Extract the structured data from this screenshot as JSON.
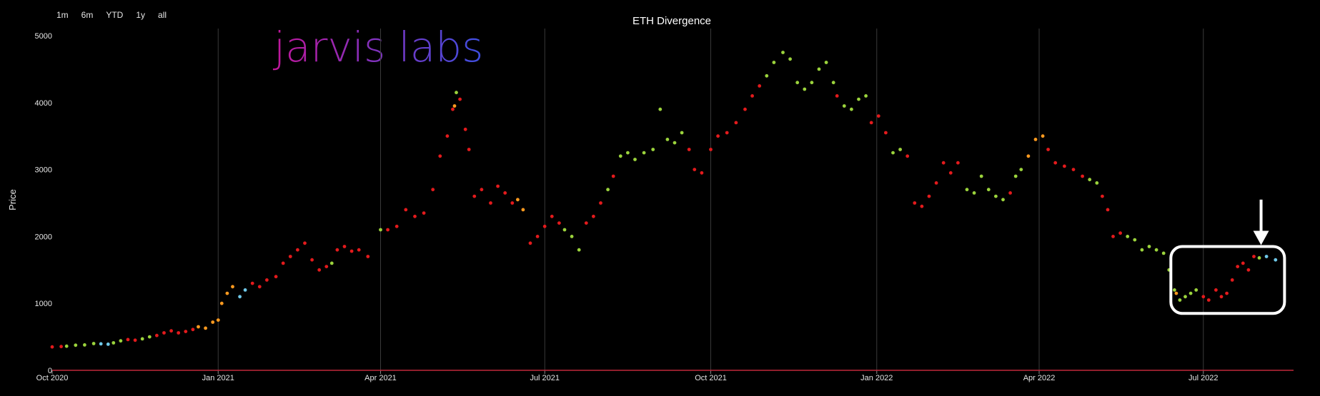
{
  "range_selector": {
    "buttons": [
      "1m",
      "6m",
      "YTD",
      "1y",
      "all"
    ]
  },
  "brand": {
    "logo_text": "jarvis labs"
  },
  "colors": {
    "background": "#000000",
    "baseline": "#c0283a",
    "gridline": "#3a3a3a",
    "red": "#e31a1c",
    "orange": "#ff9a1f",
    "green": "#9bd33c",
    "blue": "#6fc8e8",
    "annotation": "#ffffff",
    "logo_start": "#c0169a",
    "logo_end": "#3d4fe0"
  },
  "chart_data": {
    "type": "scatter",
    "title": "ETH Divergence",
    "xlabel": "",
    "ylabel": "Price",
    "ylim": [
      0,
      5000
    ],
    "yticks": [
      "0",
      "1000",
      "2000",
      "3000",
      "4000",
      "5000"
    ],
    "xlim": [
      "2020-10-01",
      "2022-08-20"
    ],
    "xticks": [
      {
        "date": "2020-10-01",
        "label": "Oct 2020"
      },
      {
        "date": "2021-01-01",
        "label": "Jan 2021"
      },
      {
        "date": "2021-04-01",
        "label": "Apr 2021"
      },
      {
        "date": "2021-07-01",
        "label": "Jul 2021"
      },
      {
        "date": "2021-10-01",
        "label": "Oct 2021"
      },
      {
        "date": "2022-01-01",
        "label": "Jan 2022"
      },
      {
        "date": "2022-04-01",
        "label": "Apr 2022"
      },
      {
        "date": "2022-07-01",
        "label": "Jul 2022"
      }
    ],
    "vertical_grid": true,
    "horizontal_grid": false,
    "legend": "none",
    "segments": [
      {
        "color": "red",
        "points": [
          [
            "2020-10-01",
            350
          ],
          [
            "2020-10-06",
            355
          ]
        ]
      },
      {
        "color": "green",
        "points": [
          [
            "2020-10-09",
            360
          ],
          [
            "2020-10-14",
            375
          ],
          [
            "2020-10-19",
            380
          ],
          [
            "2020-10-24",
            400
          ]
        ]
      },
      {
        "color": "blue",
        "points": [
          [
            "2020-10-28",
            395
          ],
          [
            "2020-11-01",
            390
          ]
        ]
      },
      {
        "color": "green",
        "points": [
          [
            "2020-11-04",
            410
          ],
          [
            "2020-11-08",
            440
          ]
        ]
      },
      {
        "color": "red",
        "points": [
          [
            "2020-11-12",
            460
          ],
          [
            "2020-11-16",
            450
          ]
        ]
      },
      {
        "color": "green",
        "points": [
          [
            "2020-11-20",
            470
          ],
          [
            "2020-11-24",
            500
          ]
        ]
      },
      {
        "color": "red",
        "points": [
          [
            "2020-11-28",
            520
          ],
          [
            "2020-12-02",
            560
          ],
          [
            "2020-12-06",
            590
          ],
          [
            "2020-12-10",
            560
          ],
          [
            "2020-12-14",
            580
          ],
          [
            "2020-12-18",
            610
          ]
        ]
      },
      {
        "color": "orange",
        "points": [
          [
            "2020-12-21",
            650
          ],
          [
            "2020-12-25",
            630
          ],
          [
            "2020-12-29",
            720
          ],
          [
            "2021-01-01",
            750
          ]
        ]
      },
      {
        "color": "orange",
        "points": [
          [
            "2021-01-03",
            1000
          ],
          [
            "2021-01-06",
            1150
          ],
          [
            "2021-01-09",
            1250
          ]
        ]
      },
      {
        "color": "blue",
        "points": [
          [
            "2021-01-13",
            1100
          ],
          [
            "2021-01-16",
            1200
          ]
        ]
      },
      {
        "color": "red",
        "points": [
          [
            "2021-01-20",
            1300
          ],
          [
            "2021-01-24",
            1250
          ],
          [
            "2021-01-28",
            1350
          ],
          [
            "2021-02-02",
            1400
          ],
          [
            "2021-02-06",
            1600
          ],
          [
            "2021-02-10",
            1700
          ],
          [
            "2021-02-14",
            1800
          ],
          [
            "2021-02-18",
            1900
          ],
          [
            "2021-02-22",
            1650
          ],
          [
            "2021-02-26",
            1500
          ],
          [
            "2021-03-02",
            1550
          ]
        ]
      },
      {
        "color": "green",
        "points": [
          [
            "2021-03-05",
            1600
          ]
        ]
      },
      {
        "color": "red",
        "points": [
          [
            "2021-03-08",
            1800
          ],
          [
            "2021-03-12",
            1850
          ],
          [
            "2021-03-16",
            1780
          ],
          [
            "2021-03-20",
            1800
          ],
          [
            "2021-03-25",
            1700
          ]
        ]
      },
      {
        "color": "green",
        "points": [
          [
            "2021-04-01",
            2100
          ]
        ]
      },
      {
        "color": "red",
        "points": [
          [
            "2021-04-05",
            2100
          ],
          [
            "2021-04-10",
            2150
          ],
          [
            "2021-04-15",
            2400
          ],
          [
            "2021-04-20",
            2300
          ],
          [
            "2021-04-25",
            2350
          ],
          [
            "2021-04-30",
            2700
          ],
          [
            "2021-05-04",
            3200
          ],
          [
            "2021-05-08",
            3500
          ],
          [
            "2021-05-11",
            3900
          ]
        ]
      },
      {
        "color": "orange",
        "points": [
          [
            "2021-05-12",
            3950
          ]
        ]
      },
      {
        "color": "green",
        "points": [
          [
            "2021-05-13",
            4150
          ]
        ]
      },
      {
        "color": "red",
        "points": [
          [
            "2021-05-15",
            4050
          ],
          [
            "2021-05-18",
            3600
          ],
          [
            "2021-05-20",
            3300
          ],
          [
            "2021-05-23",
            2600
          ],
          [
            "2021-05-27",
            2700
          ],
          [
            "2021-06-01",
            2500
          ],
          [
            "2021-06-05",
            2750
          ],
          [
            "2021-06-09",
            2650
          ],
          [
            "2021-06-13",
            2500
          ]
        ]
      },
      {
        "color": "orange",
        "points": [
          [
            "2021-06-16",
            2550
          ],
          [
            "2021-06-19",
            2400
          ]
        ]
      },
      {
        "color": "red",
        "points": [
          [
            "2021-06-23",
            1900
          ],
          [
            "2021-06-27",
            2000
          ],
          [
            "2021-07-01",
            2150
          ],
          [
            "2021-07-05",
            2300
          ],
          [
            "2021-07-09",
            2200
          ]
        ]
      },
      {
        "color": "green",
        "points": [
          [
            "2021-07-12",
            2100
          ],
          [
            "2021-07-16",
            2000
          ],
          [
            "2021-07-20",
            1800
          ]
        ]
      },
      {
        "color": "red",
        "points": [
          [
            "2021-07-24",
            2200
          ],
          [
            "2021-07-28",
            2300
          ],
          [
            "2021-08-01",
            2500
          ]
        ]
      },
      {
        "color": "green",
        "points": [
          [
            "2021-08-05",
            2700
          ]
        ]
      },
      {
        "color": "red",
        "points": [
          [
            "2021-08-08",
            2900
          ]
        ]
      },
      {
        "color": "green",
        "points": [
          [
            "2021-08-12",
            3200
          ],
          [
            "2021-08-16",
            3250
          ],
          [
            "2021-08-20",
            3150
          ],
          [
            "2021-08-25",
            3250
          ],
          [
            "2021-08-30",
            3300
          ],
          [
            "2021-09-03",
            3900
          ],
          [
            "2021-09-07",
            3450
          ],
          [
            "2021-09-11",
            3400
          ],
          [
            "2021-09-15",
            3550
          ]
        ]
      },
      {
        "color": "red",
        "points": [
          [
            "2021-09-19",
            3300
          ],
          [
            "2021-09-22",
            3000
          ],
          [
            "2021-09-26",
            2950
          ],
          [
            "2021-10-01",
            3300
          ],
          [
            "2021-10-05",
            3500
          ],
          [
            "2021-10-10",
            3550
          ],
          [
            "2021-10-15",
            3700
          ],
          [
            "2021-10-20",
            3900
          ],
          [
            "2021-10-24",
            4100
          ],
          [
            "2021-10-28",
            4250
          ]
        ]
      },
      {
        "color": "green",
        "points": [
          [
            "2021-11-01",
            4400
          ],
          [
            "2021-11-05",
            4600
          ],
          [
            "2021-11-10",
            4750
          ],
          [
            "2021-11-14",
            4650
          ],
          [
            "2021-11-18",
            4300
          ],
          [
            "2021-11-22",
            4200
          ],
          [
            "2021-11-26",
            4300
          ],
          [
            "2021-11-30",
            4500
          ],
          [
            "2021-12-04",
            4600
          ],
          [
            "2021-12-08",
            4300
          ]
        ]
      },
      {
        "color": "red",
        "points": [
          [
            "2021-12-10",
            4100
          ]
        ]
      },
      {
        "color": "green",
        "points": [
          [
            "2021-12-14",
            3950
          ],
          [
            "2021-12-18",
            3900
          ],
          [
            "2021-12-22",
            4050
          ],
          [
            "2021-12-26",
            4100
          ]
        ]
      },
      {
        "color": "red",
        "points": [
          [
            "2021-12-29",
            3700
          ],
          [
            "2022-01-02",
            3800
          ],
          [
            "2022-01-06",
            3550
          ]
        ]
      },
      {
        "color": "green",
        "points": [
          [
            "2022-01-10",
            3250
          ],
          [
            "2022-01-14",
            3300
          ]
        ]
      },
      {
        "color": "red",
        "points": [
          [
            "2022-01-18",
            3200
          ],
          [
            "2022-01-22",
            2500
          ],
          [
            "2022-01-26",
            2450
          ],
          [
            "2022-01-30",
            2600
          ],
          [
            "2022-02-03",
            2800
          ],
          [
            "2022-02-07",
            3100
          ],
          [
            "2022-02-11",
            2950
          ],
          [
            "2022-02-15",
            3100
          ]
        ]
      },
      {
        "color": "green",
        "points": [
          [
            "2022-02-20",
            2700
          ],
          [
            "2022-02-24",
            2650
          ],
          [
            "2022-02-28",
            2900
          ],
          [
            "2022-03-04",
            2700
          ],
          [
            "2022-03-08",
            2600
          ],
          [
            "2022-03-12",
            2550
          ]
        ]
      },
      {
        "color": "red",
        "points": [
          [
            "2022-03-16",
            2650
          ]
        ]
      },
      {
        "color": "green",
        "points": [
          [
            "2022-03-19",
            2900
          ],
          [
            "2022-03-22",
            3000
          ]
        ]
      },
      {
        "color": "orange",
        "points": [
          [
            "2022-03-26",
            3200
          ],
          [
            "2022-03-30",
            3450
          ],
          [
            "2022-04-03",
            3500
          ]
        ]
      },
      {
        "color": "red",
        "points": [
          [
            "2022-04-06",
            3300
          ],
          [
            "2022-04-10",
            3100
          ],
          [
            "2022-04-15",
            3050
          ],
          [
            "2022-04-20",
            3000
          ],
          [
            "2022-04-25",
            2900
          ]
        ]
      },
      {
        "color": "green",
        "points": [
          [
            "2022-04-29",
            2850
          ],
          [
            "2022-05-03",
            2800
          ]
        ]
      },
      {
        "color": "red",
        "points": [
          [
            "2022-05-06",
            2600
          ],
          [
            "2022-05-09",
            2400
          ],
          [
            "2022-05-12",
            2000
          ],
          [
            "2022-05-16",
            2050
          ]
        ]
      },
      {
        "color": "green",
        "points": [
          [
            "2022-05-20",
            2000
          ],
          [
            "2022-05-24",
            1950
          ],
          [
            "2022-05-28",
            1800
          ],
          [
            "2022-06-01",
            1850
          ],
          [
            "2022-06-05",
            1800
          ],
          [
            "2022-06-09",
            1750
          ],
          [
            "2022-06-12",
            1500
          ],
          [
            "2022-06-15",
            1200
          ]
        ]
      },
      {
        "color": "orange",
        "points": [
          [
            "2022-06-16",
            1150
          ]
        ]
      },
      {
        "color": "green",
        "points": [
          [
            "2022-06-18",
            1050
          ],
          [
            "2022-06-21",
            1100
          ],
          [
            "2022-06-24",
            1150
          ],
          [
            "2022-06-27",
            1200
          ]
        ]
      },
      {
        "color": "red",
        "points": [
          [
            "2022-07-01",
            1100
          ],
          [
            "2022-07-04",
            1050
          ],
          [
            "2022-07-08",
            1200
          ],
          [
            "2022-07-11",
            1100
          ],
          [
            "2022-07-14",
            1150
          ],
          [
            "2022-07-17",
            1350
          ],
          [
            "2022-07-20",
            1550
          ],
          [
            "2022-07-23",
            1600
          ],
          [
            "2022-07-26",
            1500
          ],
          [
            "2022-07-29",
            1700
          ]
        ]
      },
      {
        "color": "green",
        "points": [
          [
            "2022-08-01",
            1680
          ]
        ]
      },
      {
        "color": "blue",
        "points": [
          [
            "2022-08-05",
            1700
          ],
          [
            "2022-08-10",
            1650
          ]
        ]
      }
    ],
    "annotations": [
      {
        "type": "rounded-box",
        "x0": "2022-06-13",
        "x1": "2022-08-15",
        "y0": 850,
        "y1": 1850,
        "color": "annotation"
      },
      {
        "type": "arrow",
        "x": "2022-08-02",
        "y_from": 2550,
        "y_to": 1850,
        "color": "annotation"
      }
    ]
  }
}
